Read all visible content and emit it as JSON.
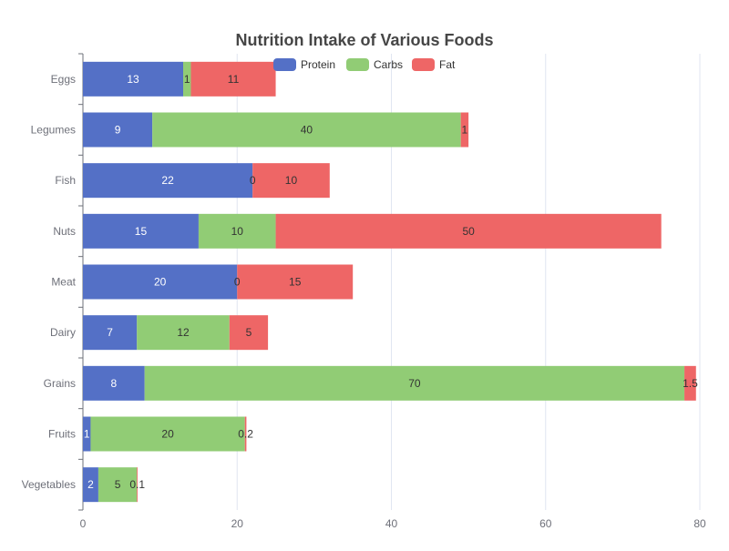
{
  "chart_data": {
    "type": "bar",
    "orientation": "horizontal",
    "stacked": true,
    "title": "Nutrition Intake of Various Foods",
    "xlabel": "",
    "ylabel": "",
    "categories": [
      "Vegetables",
      "Fruits",
      "Grains",
      "Dairy",
      "Meat",
      "Nuts",
      "Fish",
      "Legumes",
      "Eggs"
    ],
    "series": [
      {
        "name": "Protein",
        "color": "#5470c6",
        "label_color": "#ffffff",
        "values": [
          2,
          1,
          8,
          7,
          20,
          15,
          22,
          9,
          13
        ],
        "labels": [
          "2",
          "1",
          "8",
          "7",
          "20",
          "15",
          "22",
          "9",
          "13"
        ]
      },
      {
        "name": "Carbs",
        "color": "#91cc75",
        "label_color": "#333333",
        "values": [
          5,
          20,
          70,
          12,
          0,
          10,
          0,
          40,
          1
        ],
        "labels": [
          "5",
          "20",
          "70",
          "12",
          "0",
          "10",
          "0",
          "40",
          "1"
        ]
      },
      {
        "name": "Fat",
        "color": "#ee6666",
        "label_color": "#333333",
        "values": [
          0.1,
          0.2,
          1.5,
          5,
          15,
          50,
          10,
          1,
          11
        ],
        "labels": [
          "0.1",
          "0.2",
          "1.5",
          "5",
          "15",
          "50",
          "10",
          "1",
          "11"
        ]
      }
    ],
    "xlim": [
      0,
      80
    ],
    "xticks": [
      0,
      20,
      40,
      60,
      80
    ],
    "xtick_labels": [
      "0",
      "20",
      "40",
      "60",
      "80"
    ],
    "grid": true,
    "legend_position": "top-center"
  }
}
